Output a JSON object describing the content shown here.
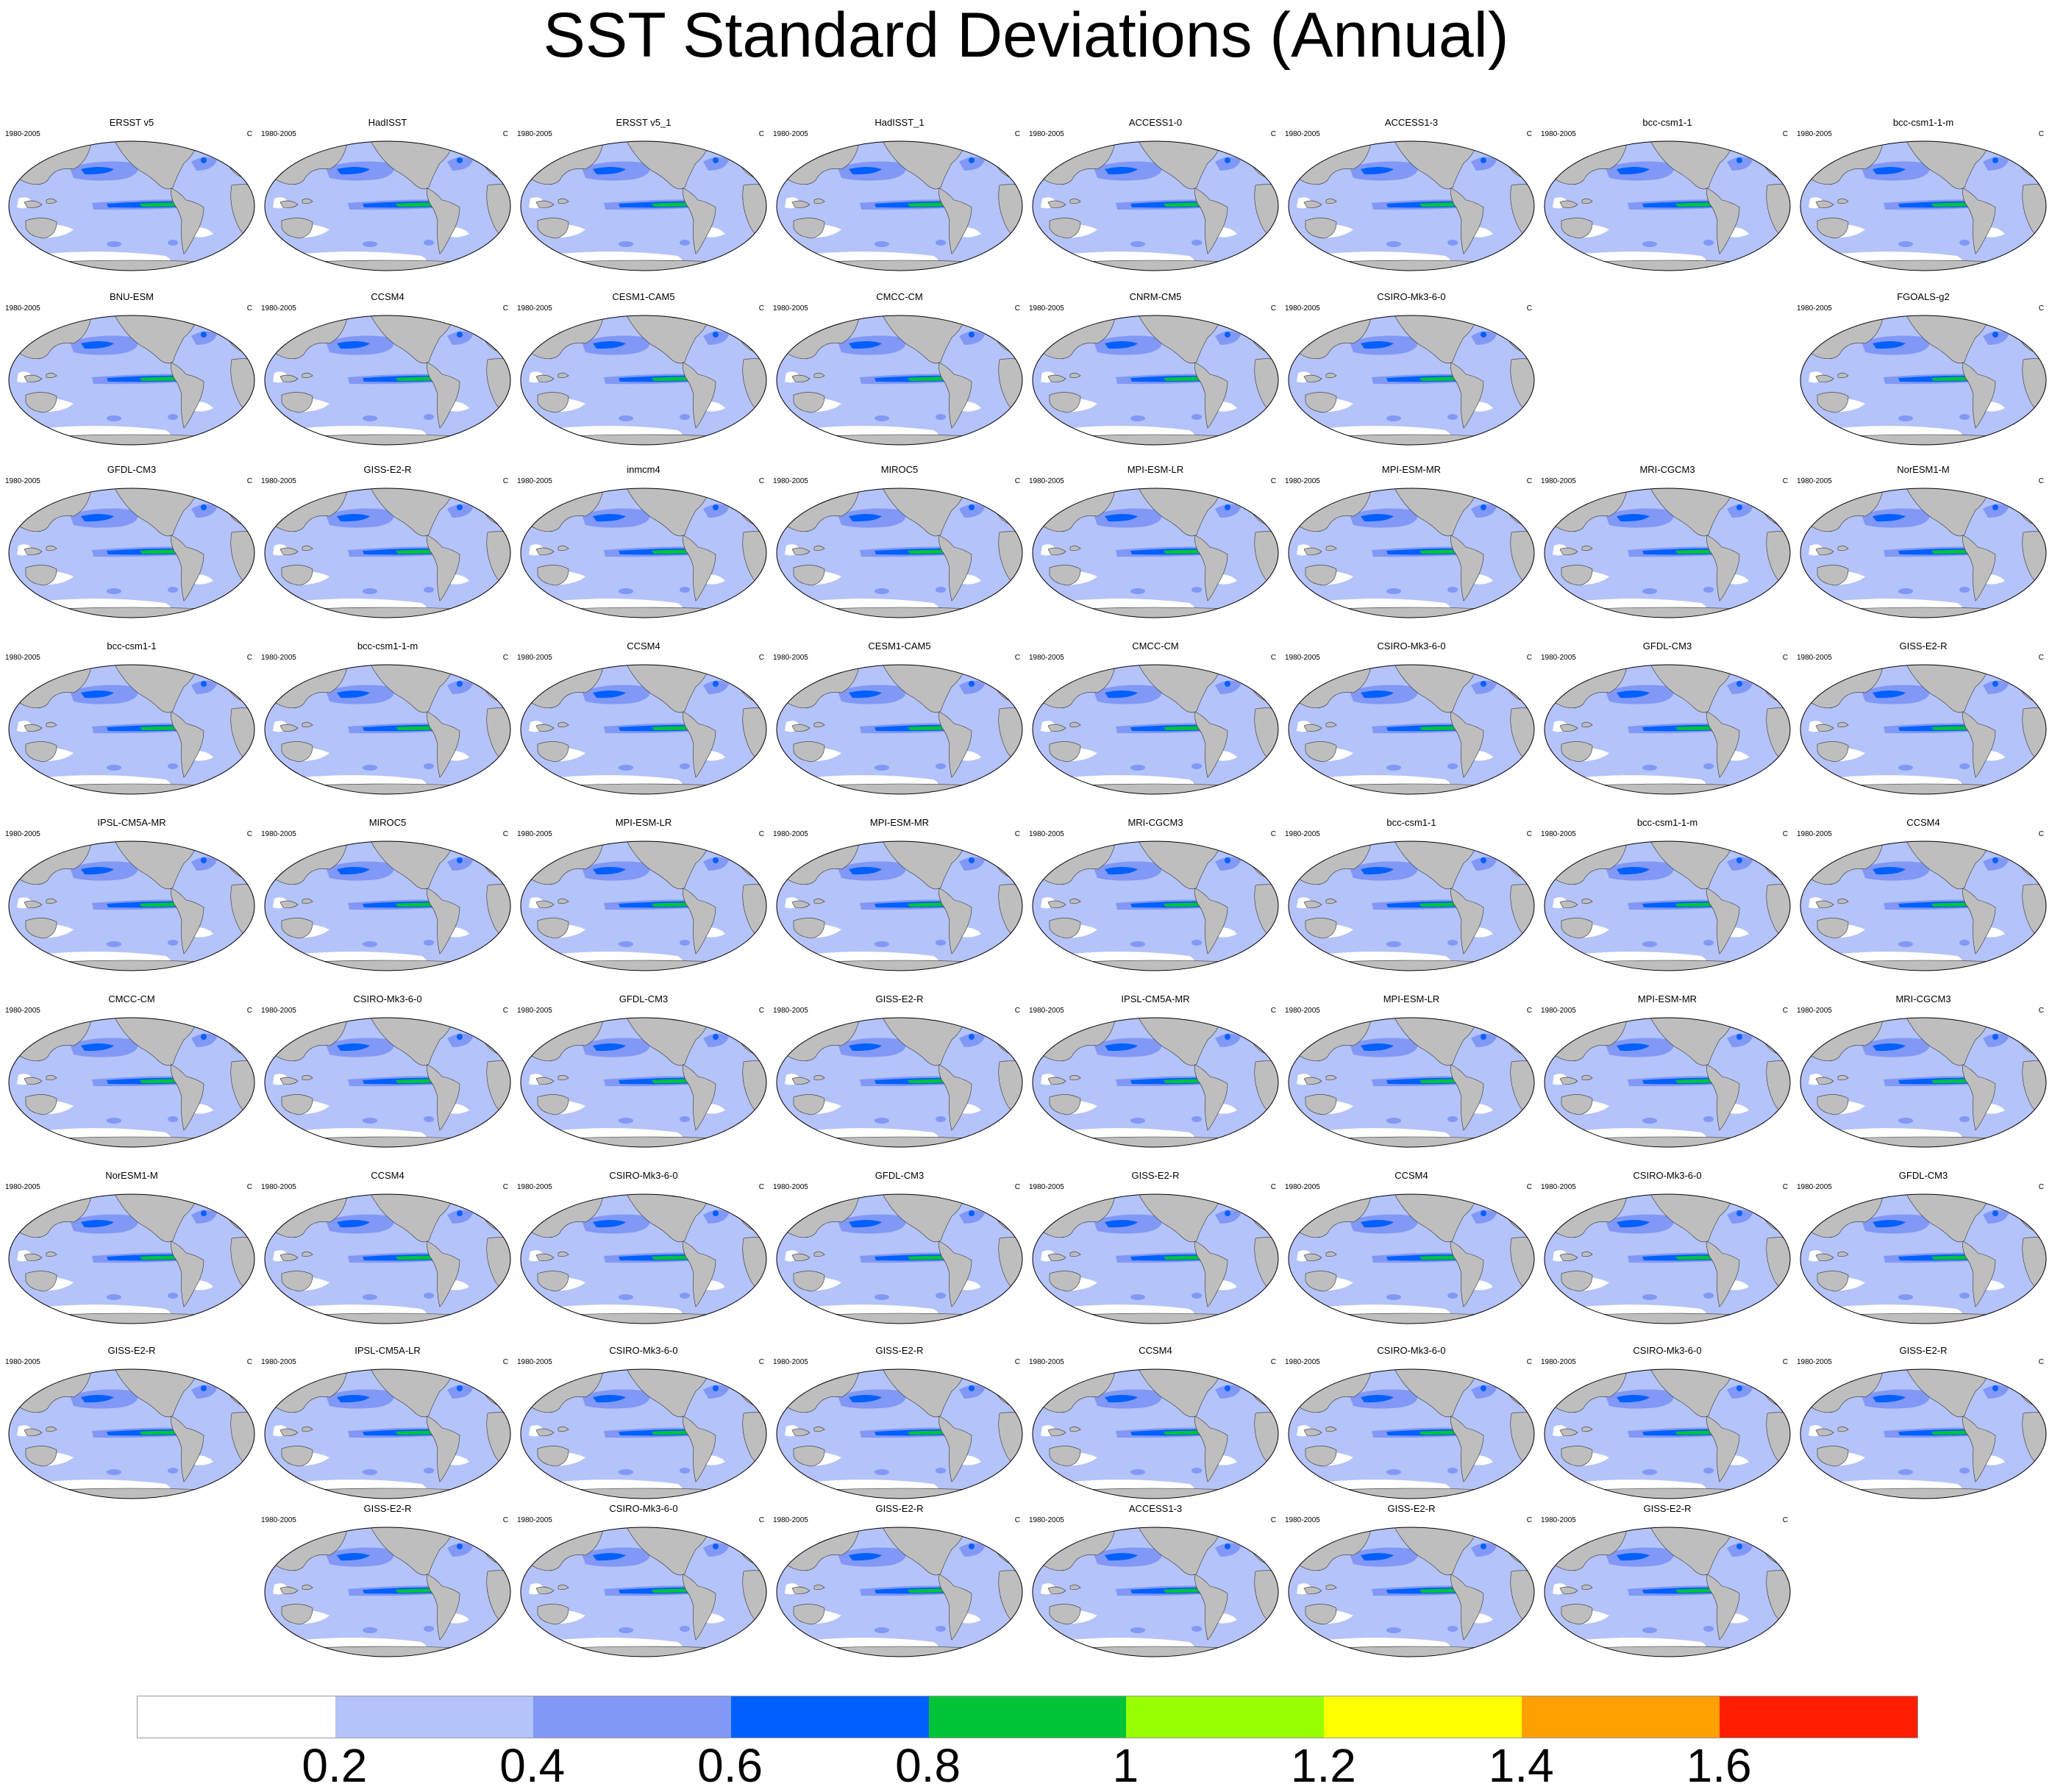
{
  "title": "SST Standard Deviations (Annual)",
  "panel_period": "1980-2005",
  "panel_units": "C",
  "rows": [
    [
      "ERSST v5",
      "HadISST",
      "ERSST v5_1",
      "HadISST_1",
      "ACCESS1-0",
      "ACCESS1-3",
      "bcc-csm1-1",
      "bcc-csm1-1-m"
    ],
    [
      "BNU-ESM",
      "CCSM4",
      "CESM1-CAM5",
      "CMCC-CM",
      "CNRM-CM5",
      "CSIRO-Mk3-6-0",
      null,
      "FGOALS-g2"
    ],
    [
      "GFDL-CM3",
      "GISS-E2-R",
      "inmcm4",
      "MIROC5",
      "MPI-ESM-LR",
      "MPI-ESM-MR",
      "MRI-CGCM3",
      "NorESM1-M"
    ],
    [
      "bcc-csm1-1",
      "bcc-csm1-1-m",
      "CCSM4",
      "CESM1-CAM5",
      "CMCC-CM",
      "CSIRO-Mk3-6-0",
      "GFDL-CM3",
      "GISS-E2-R"
    ],
    [
      "IPSL-CM5A-MR",
      "MIROC5",
      "MPI-ESM-LR",
      "MPI-ESM-MR",
      "MRI-CGCM3",
      "bcc-csm1-1",
      "bcc-csm1-1-m",
      "CCSM4"
    ],
    [
      "CMCC-CM",
      "CSIRO-Mk3-6-0",
      "GFDL-CM3",
      "GISS-E2-R",
      "IPSL-CM5A-MR",
      "MPI-ESM-LR",
      "MPI-ESM-MR",
      "MRI-CGCM3"
    ],
    [
      "NorESM1-M",
      "CCSM4",
      "CSIRO-Mk3-6-0",
      "GFDL-CM3",
      "GISS-E2-R",
      "CCSM4",
      "CSIRO-Mk3-6-0",
      "GFDL-CM3"
    ],
    [
      "GISS-E2-R",
      "IPSL-CM5A-LR",
      "CSIRO-Mk3-6-0",
      "GISS-E2-R",
      "CCSM4",
      "CSIRO-Mk3-6-0",
      "CSIRO-Mk3-6-0",
      "GISS-E2-R"
    ],
    [
      null,
      "GISS-E2-R",
      "CSIRO-Mk3-6-0",
      "GISS-E2-R",
      "ACCESS1-3",
      "GISS-E2-R",
      "GISS-E2-R",
      null
    ]
  ],
  "chart_data": {
    "type": "heatmap",
    "title": "SST Standard Deviations (Annual)",
    "variable": "SST standard deviation",
    "units": "C",
    "period": "1980-2005",
    "projection": "Robinson (global)",
    "colorbar": {
      "levels": [
        0.2,
        0.4,
        0.6,
        0.8,
        1,
        1.2,
        1.4,
        1.6
      ],
      "level_labels": [
        "0.2",
        "0.4",
        "0.6",
        "0.8",
        "1",
        "1.2",
        "1.4",
        "1.6"
      ],
      "colors": [
        "#ffffff",
        "#b4c3f9",
        "#8198f7",
        "#0060ff",
        "#00c437",
        "#97ff00",
        "#ffff00",
        "#ffa000",
        "#ff1e00"
      ],
      "land_color": "#bebebe"
    }
  }
}
